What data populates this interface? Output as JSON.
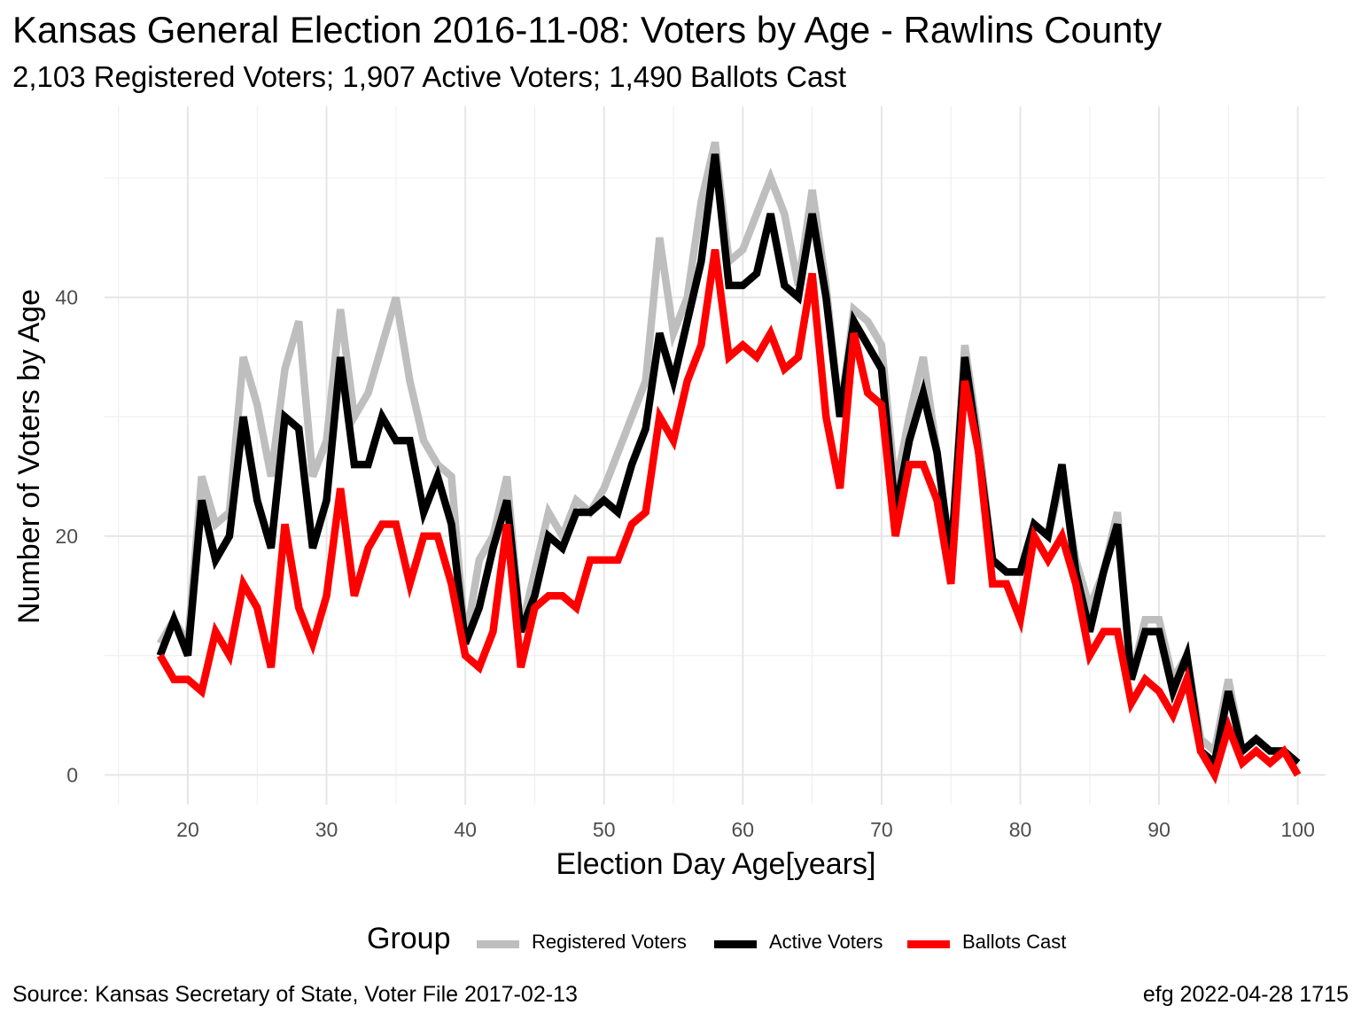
{
  "title": "Kansas General Election 2016-11-08:  Voters by Age - Rawlins County",
  "subtitle": "2,103 Registered Voters; 1,907 Active Voters; 1,490 Ballots Cast",
  "caption_left": "Source:  Kansas Secretary of State, Voter File  2017-02-13",
  "caption_right": "efg 2022-04-28 1715",
  "legend": {
    "title": "Group",
    "items": [
      {
        "label": "Registered Voters",
        "color": "#bebebe"
      },
      {
        "label": "Active Voters",
        "color": "#000000"
      },
      {
        "label": "Ballots Cast",
        "color": "#ff0000"
      }
    ]
  },
  "chart_data": {
    "type": "line",
    "xlabel": "Election Day Age[years]",
    "ylabel": "Number of Voters by Age",
    "xlim": [
      14,
      102
    ],
    "ylim": [
      -2.5,
      56
    ],
    "xticks": [
      20,
      30,
      40,
      50,
      60,
      70,
      80,
      90,
      100
    ],
    "yticks": [
      0,
      20,
      40
    ],
    "grid": true,
    "legend_position": "bottom",
    "x": [
      18,
      19,
      20,
      21,
      22,
      23,
      24,
      25,
      26,
      27,
      28,
      29,
      30,
      31,
      32,
      33,
      34,
      35,
      36,
      37,
      38,
      39,
      40,
      41,
      42,
      43,
      44,
      45,
      46,
      47,
      48,
      49,
      50,
      51,
      52,
      53,
      54,
      55,
      56,
      57,
      58,
      59,
      60,
      61,
      62,
      63,
      64,
      65,
      66,
      67,
      68,
      69,
      70,
      71,
      72,
      73,
      74,
      75,
      76,
      77,
      78,
      79,
      80,
      81,
      82,
      83,
      84,
      85,
      86,
      87,
      88,
      89,
      90,
      91,
      92,
      93,
      94,
      95,
      96,
      97,
      98,
      99,
      100
    ],
    "series": [
      {
        "name": "Registered Voters",
        "color": "#bebebe",
        "values": [
          11,
          13,
          11,
          25,
          21,
          22,
          35,
          31,
          25,
          34,
          38,
          25,
          28,
          39,
          30,
          32,
          36,
          40,
          33,
          28,
          26,
          25,
          11,
          18,
          20,
          25,
          12,
          17,
          22,
          20,
          23,
          22,
          24,
          27,
          30,
          33,
          45,
          37,
          40,
          48,
          53,
          43,
          44,
          47,
          50,
          47,
          41,
          49,
          41,
          30,
          39,
          38,
          36,
          24,
          30,
          35,
          27,
          18,
          36,
          28,
          18,
          17,
          17,
          21,
          20,
          25,
          18,
          14,
          17,
          22,
          8,
          13,
          13,
          8,
          10,
          3,
          2,
          8,
          2,
          3,
          2,
          2,
          1
        ]
      },
      {
        "name": "Active Voters",
        "color": "#000000",
        "values": [
          10,
          13,
          10,
          23,
          18,
          20,
          30,
          23,
          19,
          30,
          29,
          19,
          23,
          35,
          26,
          26,
          30,
          28,
          28,
          22,
          25,
          21,
          11,
          14,
          19,
          23,
          12,
          15,
          20,
          19,
          22,
          22,
          23,
          22,
          26,
          29,
          37,
          33,
          38,
          43,
          52,
          41,
          41,
          42,
          47,
          41,
          40,
          47,
          40,
          30,
          38,
          36,
          34,
          22,
          28,
          32,
          27,
          18,
          35,
          27,
          18,
          17,
          17,
          21,
          20,
          26,
          17,
          12,
          17,
          21,
          8,
          12,
          12,
          7,
          10,
          2,
          1,
          7,
          2,
          3,
          2,
          2,
          1
        ]
      },
      {
        "name": "Ballots Cast",
        "color": "#ff0000",
        "values": [
          10,
          8,
          8,
          7,
          12,
          10,
          16,
          14,
          9,
          21,
          14,
          11,
          15,
          24,
          15,
          19,
          21,
          21,
          16,
          20,
          20,
          16,
          10,
          9,
          12,
          21,
          9,
          14,
          15,
          15,
          14,
          18,
          18,
          18,
          21,
          22,
          30,
          28,
          33,
          36,
          44,
          35,
          36,
          35,
          37,
          34,
          35,
          42,
          30,
          24,
          37,
          32,
          31,
          20,
          26,
          26,
          23,
          16,
          33,
          27,
          16,
          16,
          13,
          20,
          18,
          20,
          16,
          10,
          12,
          12,
          6,
          8,
          7,
          5,
          8,
          2,
          0,
          4,
          1,
          2,
          1,
          2,
          0
        ]
      }
    ]
  }
}
